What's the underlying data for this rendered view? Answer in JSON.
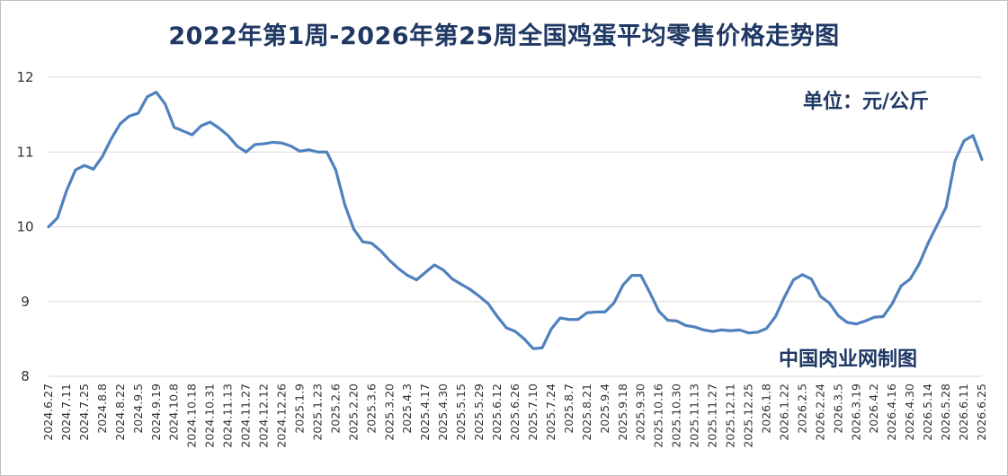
{
  "chart_data": {
    "type": "line",
    "title": "2022年第1周-2026年第25周全国鸡蛋平均零售价格走势图",
    "unit_label": "单位：元/公斤",
    "source_label": "中国肉业网制图",
    "xlabel": "",
    "ylabel": "",
    "ylim": [
      8,
      12
    ],
    "yticks": [
      8,
      9,
      10,
      11,
      12
    ],
    "grid": true,
    "series_color": "#4f81bd",
    "x_tick_labels": [
      "2024.6.27",
      "2024.7.11",
      "2024.7.25",
      "2024.8.8",
      "2024.8.22",
      "2024.9.5",
      "2024.9.19",
      "2024.10.8",
      "2024.10.18",
      "2024.10.31",
      "2024.11.13",
      "2024.11.27",
      "2024.12.12",
      "2024.12.26",
      "2025.1.9",
      "2025.1.23",
      "2025.2.6",
      "2025.2.20",
      "2025.3.6",
      "2025.3.20",
      "2025.4.3",
      "2025.4.17",
      "2025.4.30",
      "2025.5.15",
      "2025.5.29",
      "2025.6.12",
      "2025.6.26",
      "2025.7.10",
      "2025.7.24",
      "2025.8.7",
      "2025.8.21",
      "2025.9.4",
      "2025.9.18",
      "2025.9.30",
      "2025.10.16",
      "2025.10.30",
      "2025.11.13",
      "2025.11.27",
      "2025.12.11",
      "2025.12.25",
      "2026.1.8",
      "2026.1.22",
      "2026.2.5",
      "2026.2.24",
      "2026.3.5",
      "2026.3.19",
      "2026.4.2",
      "2026.4.16",
      "2026.4.30",
      "2026.5.14",
      "2026.5.28",
      "2026.6.11",
      "2026.6.25"
    ],
    "values": [
      10.0,
      10.12,
      10.48,
      10.76,
      10.82,
      10.77,
      10.94,
      11.18,
      11.38,
      11.48,
      11.52,
      11.74,
      11.8,
      11.64,
      11.33,
      11.28,
      11.23,
      11.35,
      11.4,
      11.32,
      11.22,
      11.08,
      11.0,
      11.1,
      11.11,
      11.13,
      11.12,
      11.08,
      11.01,
      11.03,
      11.0,
      11.0,
      10.76,
      10.3,
      9.97,
      9.8,
      9.78,
      9.68,
      9.55,
      9.44,
      9.35,
      9.29,
      9.39,
      9.49,
      9.42,
      9.3,
      9.23,
      9.16,
      9.07,
      8.97,
      8.8,
      8.65,
      8.6,
      8.5,
      8.37,
      8.38,
      8.63,
      8.78,
      8.76,
      8.76,
      8.85,
      8.86,
      8.86,
      8.98,
      9.22,
      9.35,
      9.35,
      9.12,
      8.87,
      8.75,
      8.74,
      8.68,
      8.66,
      8.62,
      8.6,
      8.62,
      8.61,
      8.62,
      8.58,
      8.59,
      8.64,
      8.8,
      9.06,
      9.29,
      9.36,
      9.3,
      9.07,
      8.98,
      8.81,
      8.72,
      8.7,
      8.74,
      8.79,
      8.8,
      8.97,
      9.21,
      9.3,
      9.5,
      9.78,
      10.02,
      10.26,
      10.88,
      11.15,
      11.22,
      10.9
    ]
  }
}
